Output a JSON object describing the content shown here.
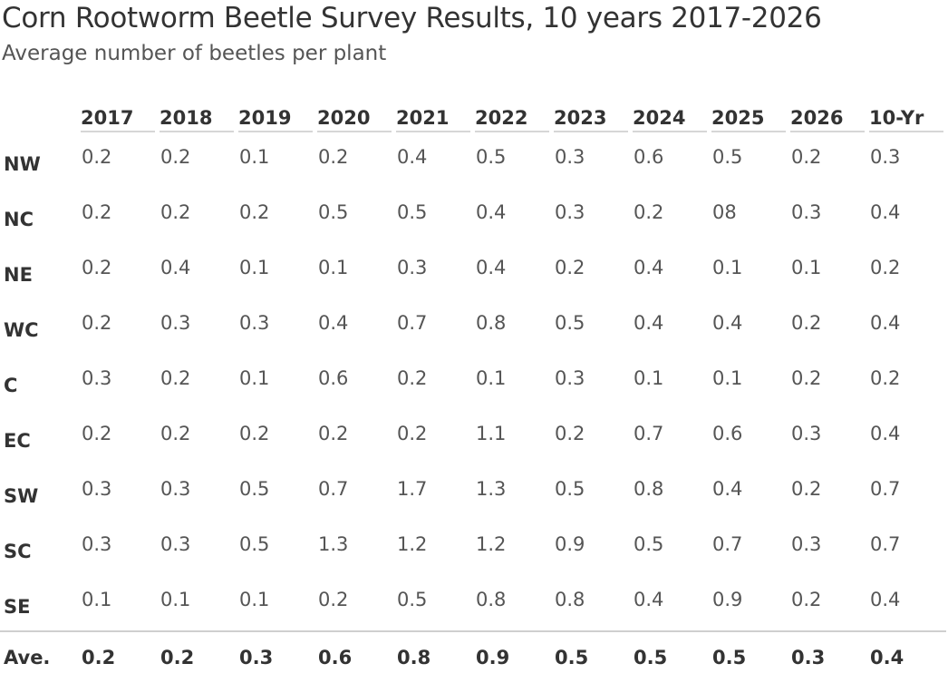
{
  "chart_data": {
    "type": "table",
    "title": "Corn Rootworm Beetle Survey Results, 10 years 2017-2026",
    "subtitle": "Average number of beetles per plant",
    "columns": [
      "2017",
      "2018",
      "2019",
      "2020",
      "2021",
      "2022",
      "2023",
      "2024",
      "2025",
      "2026",
      "10-Yr"
    ],
    "rows": [
      {
        "label": "NW",
        "values": [
          "0.2",
          "0.2",
          "0.1",
          "0.2",
          "0.4",
          "0.5",
          "0.3",
          "0.6",
          "0.5",
          "0.2",
          "0.3"
        ]
      },
      {
        "label": "NC",
        "values": [
          "0.2",
          "0.2",
          "0.2",
          "0.5",
          "0.5",
          "0.4",
          "0.3",
          "0.2",
          "08",
          "0.3",
          "0.4"
        ]
      },
      {
        "label": "NE",
        "values": [
          "0.2",
          "0.4",
          "0.1",
          "0.1",
          "0.3",
          "0.4",
          "0.2",
          "0.4",
          "0.1",
          "0.1",
          "0.2"
        ]
      },
      {
        "label": "WC",
        "values": [
          "0.2",
          "0.3",
          "0.3",
          "0.4",
          "0.7",
          "0.8",
          "0.5",
          "0.4",
          "0.4",
          "0.2",
          "0.4"
        ]
      },
      {
        "label": "C",
        "values": [
          "0.3",
          "0.2",
          "0.1",
          "0.6",
          "0.2",
          "0.1",
          "0.3",
          "0.1",
          "0.1",
          "0.2",
          "0.2"
        ]
      },
      {
        "label": "EC",
        "values": [
          "0.2",
          "0.2",
          "0.2",
          "0.2",
          "0.2",
          "1.1",
          "0.2",
          "0.7",
          "0.6",
          "0.3",
          "0.4"
        ]
      },
      {
        "label": "SW",
        "values": [
          "0.3",
          "0.3",
          "0.5",
          "0.7",
          "1.7",
          "1.3",
          "0.5",
          "0.8",
          "0.4",
          "0.2",
          "0.7"
        ]
      },
      {
        "label": "SC",
        "values": [
          "0.3",
          "0.3",
          "0.5",
          "1.3",
          "1.2",
          "1.2",
          "0.9",
          "0.5",
          "0.7",
          "0.3",
          "0.7"
        ]
      },
      {
        "label": "SE",
        "values": [
          "0.1",
          "0.1",
          "0.1",
          "0.2",
          "0.5",
          "0.8",
          "0.8",
          "0.4",
          "0.9",
          "0.2",
          "0.4"
        ]
      }
    ],
    "footer": {
      "label": "Ave.",
      "values": [
        "0.2",
        "0.2",
        "0.3",
        "0.6",
        "0.8",
        "0.9",
        "0.5",
        "0.5",
        "0.5",
        "0.3",
        "0.4"
      ]
    }
  }
}
